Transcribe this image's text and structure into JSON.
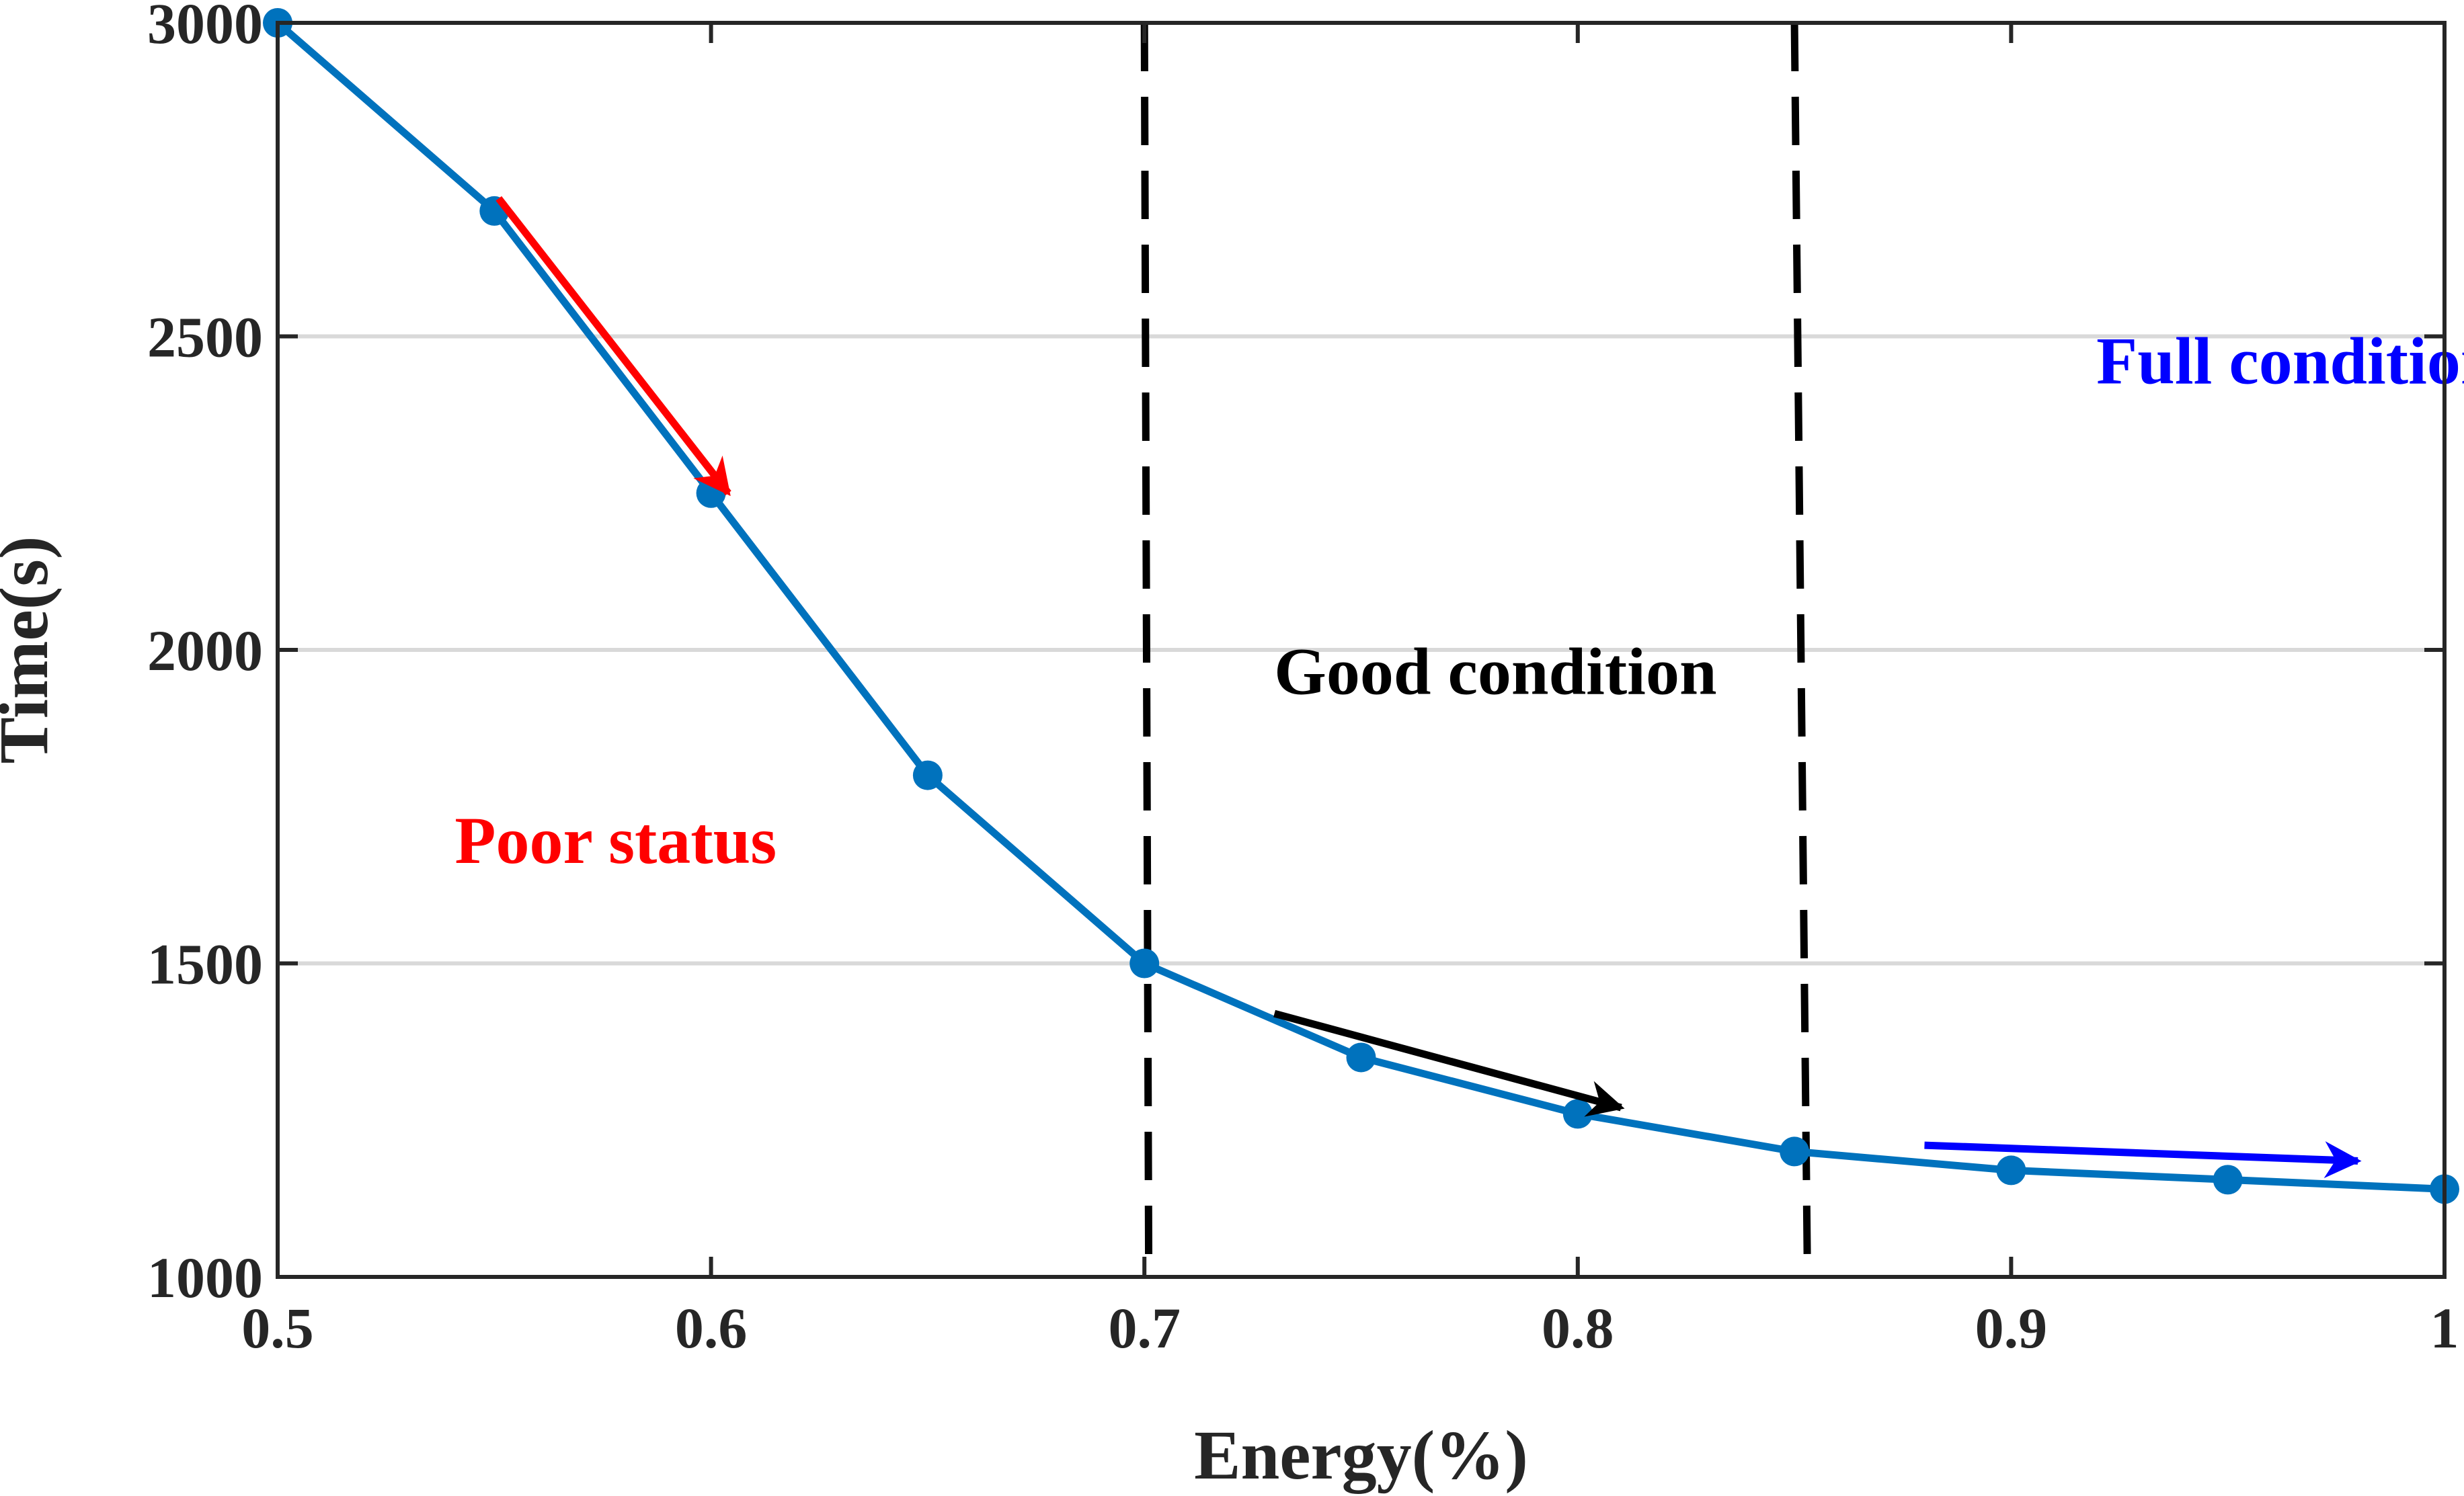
{
  "chart_data": {
    "type": "line",
    "title": "",
    "xlabel": "Energy(%)",
    "ylabel": "Time(s)",
    "xlim": [
      0.5,
      1
    ],
    "ylim": [
      1000,
      3000
    ],
    "x_ticks": [
      0.5,
      0.6,
      0.7,
      0.8,
      0.9,
      1
    ],
    "x_tick_labels": [
      "0.5",
      "0.6",
      "0.7",
      "0.8",
      "0.9",
      "1"
    ],
    "y_ticks": [
      1000,
      1500,
      2000,
      2500,
      3000
    ],
    "y_tick_labels": [
      "1000",
      "1500",
      "2000",
      "2500",
      "3000"
    ],
    "grid": "horizontal",
    "series": [
      {
        "color": "#0072BD",
        "marker": "circle",
        "x": [
          0.5,
          0.55,
          0.6,
          0.65,
          0.7,
          0.75,
          0.8,
          0.85,
          0.9,
          0.95,
          1.0
        ],
        "y": [
          3000,
          2700,
          2250,
          1800,
          1500,
          1350,
          1260,
          1200,
          1170,
          1155,
          1140
        ]
      }
    ],
    "dividers": [
      {
        "x_top": 0.7,
        "x_bottom": 0.701,
        "style": "dashed",
        "color": "#000000"
      },
      {
        "x_top": 0.85,
        "x_bottom": 0.853,
        "style": "dashed",
        "color": "#000000"
      }
    ],
    "arrows": [
      {
        "color": "#FF0000",
        "from": [
          0.551,
          2720
        ],
        "to": [
          0.604,
          2250
        ]
      },
      {
        "color": "#000000",
        "from": [
          0.73,
          1420
        ],
        "to": [
          0.81,
          1270
        ]
      },
      {
        "color": "#0000FF",
        "from": [
          0.88,
          1210
        ],
        "to": [
          0.98,
          1185
        ]
      }
    ],
    "annotations": [
      {
        "text": "Poor status",
        "color": "#FF0000",
        "x": 0.578,
        "y": 1660
      },
      {
        "text": "Good condition",
        "color": "#000000",
        "x": 0.781,
        "y": 1930
      },
      {
        "text": "Full condition",
        "color": "#0000FF",
        "x": 0.966,
        "y": 2425
      }
    ]
  }
}
